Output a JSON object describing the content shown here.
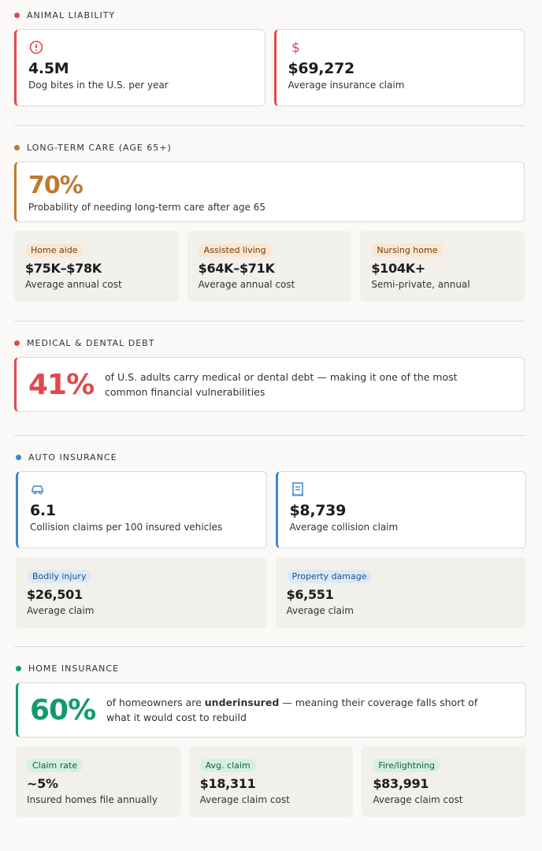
{
  "sections": [
    {
      "title": "ANIMAL LIABILITY",
      "cards": [
        {
          "value": "4.5M",
          "label": "Dog bites in the U.S. per year"
        },
        {
          "value": "$69,272",
          "label": "Average insurance claim"
        }
      ]
    },
    {
      "title": "LONG-TERM CARE (AGE 65+)",
      "highlight": {
        "value": "70%",
        "label": "Probability of needing long-term care after age 65"
      },
      "tiles": [
        {
          "tag": "Home aide",
          "value": "$75K–$78K",
          "label": "Average annual cost"
        },
        {
          "tag": "Assisted living",
          "value": "$64K–$71K",
          "label": "Average annual cost"
        },
        {
          "tag": "Nursing home",
          "value": "$104K+",
          "label": "Semi-private, annual"
        }
      ]
    },
    {
      "title": "MEDICAL & DENTAL DEBT",
      "highlight": {
        "value": "41%",
        "label": "of U.S. adults carry medical or dental debt — making it one of the most common financial vulnerabilities"
      }
    },
    {
      "title": "AUTO INSURANCE",
      "cards": [
        {
          "value": "6.1",
          "label": "Collision claims per 100 insured vehicles"
        },
        {
          "value": "$8,739",
          "label": "Average collision claim"
        }
      ],
      "tiles": [
        {
          "tag": "Bodily injury",
          "value": "$26,501",
          "label": "Average claim"
        },
        {
          "tag": "Property damage",
          "value": "$6,551",
          "label": "Average claim"
        }
      ]
    },
    {
      "title": "HOME INSURANCE",
      "highlight": {
        "value": "60%",
        "label_parts": [
          "of homeowners are ",
          "underinsured",
          " — meaning their coverage falls short of what it would cost to rebuild"
        ]
      },
      "tiles": [
        {
          "tag": "Claim rate",
          "value": "~5%",
          "label": "Insured homes file annually"
        },
        {
          "tag": "Avg. claim",
          "value": "$18,311",
          "label": "Average claim cost"
        },
        {
          "tag": "Fire/lightning",
          "value": "$83,991",
          "label": "Average claim cost"
        }
      ]
    }
  ]
}
